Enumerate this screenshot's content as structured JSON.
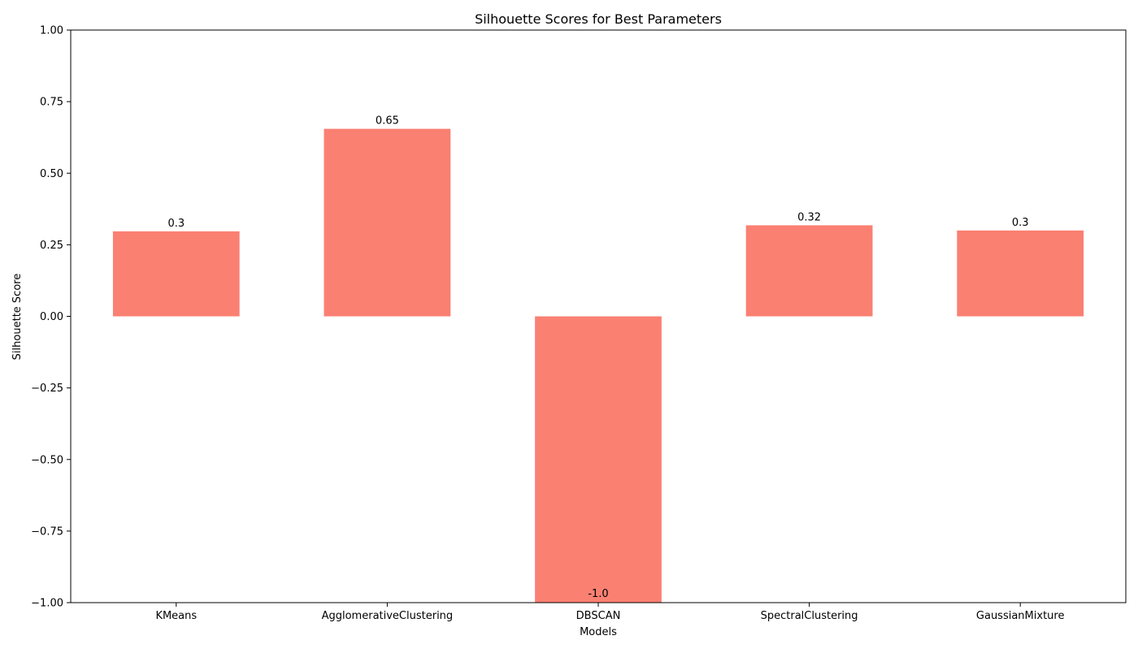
{
  "chart_data": {
    "type": "bar",
    "title": "Silhouette Scores for Best Parameters",
    "xlabel": "Models",
    "ylabel": "Silhouette Score",
    "categories": [
      "KMeans",
      "AgglomerativeClustering",
      "DBSCAN",
      "SpectralClustering",
      "GaussianMixture"
    ],
    "values": [
      0.297,
      0.655,
      -1.0,
      0.318,
      0.3
    ],
    "data_labels": [
      "0.3",
      "0.65",
      "-1.0",
      "0.32",
      "0.3"
    ],
    "ylim": [
      -1.0,
      1.0
    ],
    "yticks": [
      -1.0,
      -0.75,
      -0.5,
      -0.25,
      0.0,
      0.25,
      0.5,
      0.75,
      1.0
    ],
    "ytick_labels": [
      "−1.00",
      "−0.75",
      "−0.50",
      "−0.25",
      "0.00",
      "0.25",
      "0.50",
      "0.75",
      "1.00"
    ],
    "grid": false,
    "bar_color": "#fa8072"
  }
}
